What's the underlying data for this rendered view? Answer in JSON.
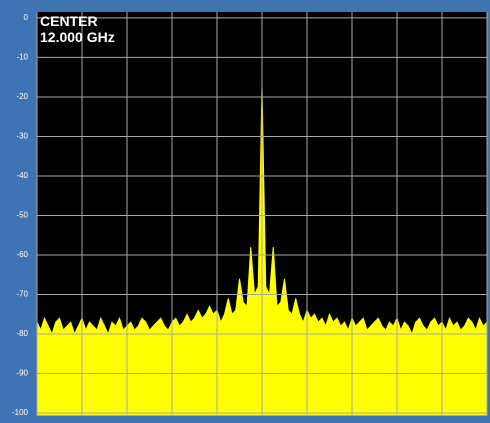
{
  "chart_data": {
    "type": "area",
    "annotations": [
      "CENTER",
      "12.000 GHz"
    ],
    "values": [
      -77,
      -79,
      -76,
      -78,
      -80,
      -77,
      -76,
      -79,
      -78,
      -77,
      -80,
      -78,
      -76,
      -79,
      -77,
      -78,
      -79,
      -76,
      -78,
      -80,
      -77,
      -78,
      -76,
      -79,
      -78,
      -77,
      -79,
      -78,
      -76,
      -77,
      -79,
      -78,
      -77,
      -76,
      -78,
      -79,
      -77,
      -76,
      -78,
      -77,
      -75,
      -77,
      -76,
      -74,
      -76,
      -75,
      -73,
      -75,
      -74,
      -77,
      -75,
      -71,
      -75,
      -74,
      -66,
      -72,
      -73,
      -58,
      -70,
      -68,
      -17,
      -68,
      -70,
      -58,
      -73,
      -72,
      -66,
      -74,
      -75,
      -71,
      -75,
      -77,
      -74,
      -76,
      -75,
      -77,
      -76,
      -78,
      -75,
      -77,
      -76,
      -78,
      -77,
      -79,
      -76,
      -78,
      -77,
      -76,
      -79,
      -78,
      -77,
      -76,
      -78,
      -79,
      -77,
      -78,
      -76,
      -79,
      -77,
      -78,
      -80,
      -77,
      -76,
      -78,
      -79,
      -77,
      -76,
      -78,
      -77,
      -79,
      -76,
      -78,
      -77,
      -79,
      -78,
      -76,
      -77,
      -79,
      -76,
      -78,
      -77
    ],
    "color": "#ffff00",
    "ylim": [
      -100.5,
      1.5
    ],
    "yticks": [
      0,
      -10,
      -20,
      -30,
      -40,
      -50,
      -60,
      -70,
      -80,
      -90,
      -100
    ],
    "xdivisions": 10,
    "grid": true
  }
}
